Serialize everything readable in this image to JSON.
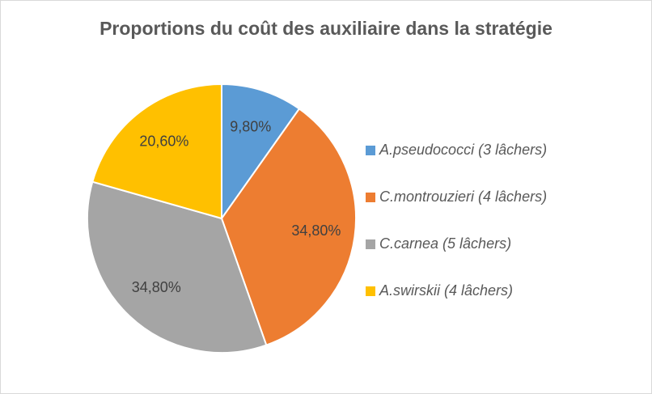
{
  "chart_data": {
    "type": "pie",
    "title": "Proportions du coût des auxiliaire dans la stratégie",
    "categories": [
      "A.pseudococci (3 lâchers)",
      "C.montrouzieri (4 lâchers)",
      "C.carnea (5 lâchers)",
      "A.swirskii (4 lâchers)"
    ],
    "values": [
      9.8,
      34.8,
      34.8,
      20.6
    ],
    "value_labels": [
      "9,80%",
      "34,80%",
      "34,80%",
      "20,60%"
    ],
    "colors": [
      "#5b9bd5",
      "#ed7d31",
      "#a5a5a5",
      "#ffc000"
    ],
    "legend": "right"
  }
}
